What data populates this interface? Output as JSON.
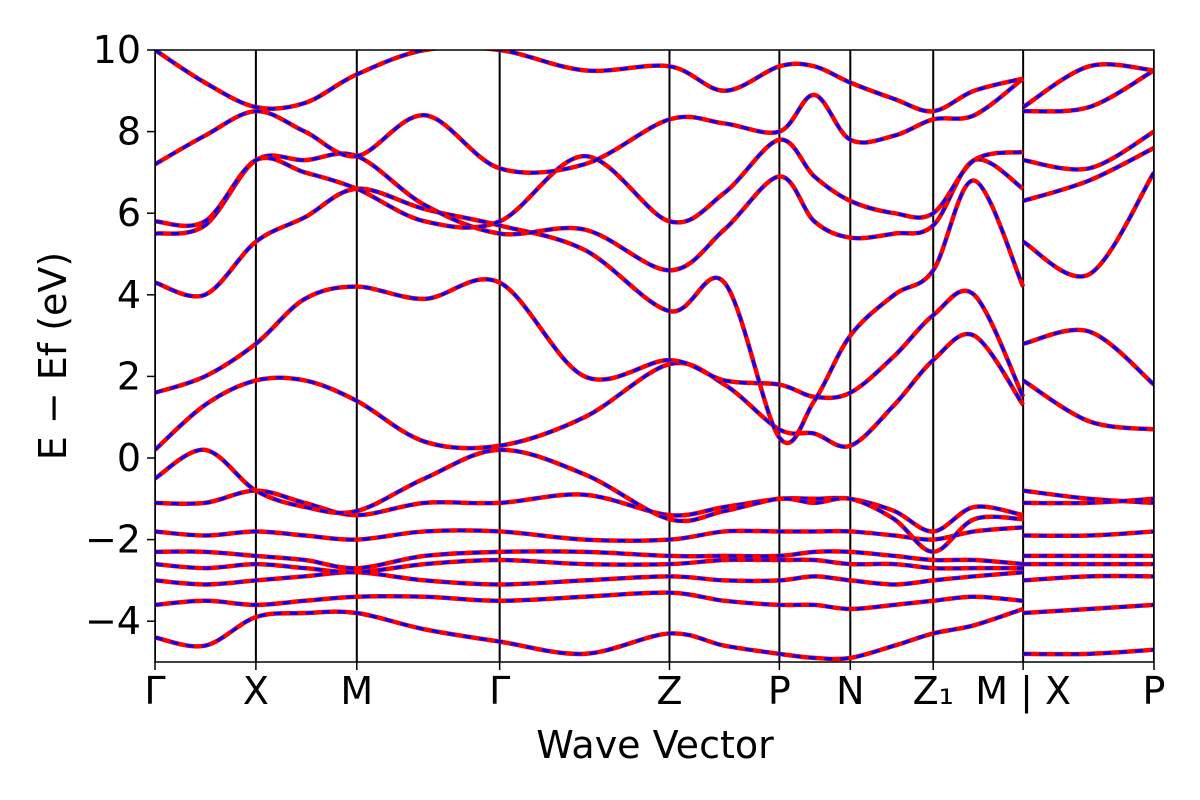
{
  "chart_data": {
    "type": "line",
    "xlabel": "Wave Vector",
    "ylabel": "E − Ef (eV)",
    "x": [
      0,
      0.05,
      0.101,
      0.15,
      0.202,
      0.27,
      0.345,
      0.43,
      0.515,
      0.57,
      0.625,
      0.66,
      0.696,
      0.74,
      0.779,
      0.82,
      0.869,
      0.869,
      0.869,
      0.935,
      1.0
    ],
    "xlim": [
      0,
      1.0
    ],
    "xticks": [
      {
        "value": 0,
        "label": "Γ"
      },
      {
        "value": 0.101,
        "label": "X"
      },
      {
        "value": 0.202,
        "label": "M"
      },
      {
        "value": 0.345,
        "label": "Γ"
      },
      {
        "value": 0.515,
        "label": "Z"
      },
      {
        "value": 0.625,
        "label": "P"
      },
      {
        "value": 0.696,
        "label": "N"
      },
      {
        "value": 0.779,
        "label": "Z₁"
      },
      {
        "value": 0.869,
        "label": "M | X"
      },
      {
        "value": 1.0,
        "label": "P"
      }
    ],
    "ylim": [
      -5,
      10
    ],
    "yticks": [
      {
        "value": -4,
        "label": "−4"
      },
      {
        "value": -2,
        "label": "−2"
      },
      0,
      2,
      4,
      6,
      8,
      10
    ],
    "vlines": true,
    "dash_color": "#0000ff",
    "series": [
      {
        "color": "#ff0000",
        "values": [
          -4.4,
          -4.6,
          -3.9,
          -3.8,
          -3.8,
          -4.2,
          -4.5,
          -4.8,
          -4.3,
          -4.6,
          -4.8,
          -4.9,
          -4.9,
          -4.6,
          -4.3,
          -4.1,
          -3.7,
          null,
          -4.8,
          -4.8,
          -4.7
        ]
      },
      {
        "color": "#ff0000",
        "values": [
          -3.6,
          -3.5,
          -3.6,
          -3.5,
          -3.4,
          -3.4,
          -3.5,
          -3.4,
          -3.3,
          -3.5,
          -3.6,
          -3.6,
          -3.7,
          -3.6,
          -3.5,
          -3.4,
          -3.5,
          null,
          -3.8,
          -3.7,
          -3.6
        ]
      },
      {
        "color": "#ff0000",
        "values": [
          -3.0,
          -3.1,
          -3.0,
          -2.9,
          -2.8,
          -3.0,
          -3.1,
          -3.0,
          -2.9,
          -3.0,
          -3.0,
          -2.9,
          -3.0,
          -3.1,
          -3.0,
          -2.9,
          -2.8,
          null,
          -3.0,
          -2.9,
          -2.9
        ]
      },
      {
        "color": "#ff0000",
        "values": [
          -2.6,
          -2.7,
          -2.6,
          -2.7,
          -2.8,
          -2.6,
          -2.5,
          -2.6,
          -2.6,
          -2.5,
          -2.5,
          -2.5,
          -2.6,
          -2.6,
          -2.7,
          -2.7,
          -2.7,
          null,
          -2.6,
          -2.6,
          -2.6
        ]
      },
      {
        "color": "#ff0000",
        "values": [
          -2.3,
          -2.3,
          -2.4,
          -2.5,
          -2.7,
          -2.4,
          -2.3,
          -2.3,
          -2.4,
          -2.4,
          -2.4,
          -2.3,
          -2.3,
          -2.4,
          -2.5,
          -2.5,
          -2.6,
          null,
          -2.4,
          -2.4,
          -2.4
        ]
      },
      {
        "color": "#ff0000",
        "values": [
          -1.8,
          -1.9,
          -1.8,
          -1.9,
          -2.0,
          -1.8,
          -1.8,
          -2.0,
          -2.0,
          -1.8,
          -1.8,
          -1.8,
          -1.8,
          -1.9,
          -2.0,
          -1.8,
          -1.7,
          null,
          -1.9,
          -1.9,
          -1.8
        ]
      },
      {
        "color": "#ff0000",
        "values": [
          -1.1,
          -1.1,
          -0.8,
          -1.1,
          -1.4,
          -1.1,
          -1.1,
          -0.9,
          -1.4,
          -1.2,
          -1.0,
          -1.0,
          -1.0,
          -1.3,
          -1.8,
          -1.2,
          -1.4,
          null,
          -0.8,
          -1.0,
          -1.1
        ]
      },
      {
        "color": "#ff0000",
        "values": [
          -0.5,
          0.2,
          -0.8,
          -1.2,
          -1.3,
          -0.5,
          0.2,
          -0.4,
          -1.5,
          -1.3,
          -1.0,
          -1.1,
          -1.0,
          -1.5,
          -2.3,
          -1.5,
          -1.5,
          null,
          -1.1,
          -1.1,
          -1.0
        ]
      },
      {
        "color": "#ff0000",
        "values": [
          0.2,
          1.3,
          1.9,
          1.9,
          1.4,
          0.4,
          0.3,
          1.0,
          2.3,
          1.8,
          0.7,
          0.6,
          0.3,
          1.3,
          2.4,
          3.0,
          1.3,
          null,
          1.9,
          0.9,
          0.7
        ]
      },
      {
        "color": "#ff0000",
        "values": [
          1.6,
          2.0,
          2.8,
          3.9,
          4.2,
          3.9,
          4.3,
          2.0,
          2.4,
          1.9,
          1.8,
          1.5,
          1.6,
          2.5,
          3.5,
          4.0,
          1.5,
          null,
          2.8,
          3.1,
          1.8
        ]
      },
      {
        "color": "#ff0000",
        "values": [
          4.3,
          4.0,
          5.3,
          5.9,
          6.6,
          6.1,
          5.7,
          5.1,
          3.6,
          4.3,
          0.5,
          1.4,
          3.0,
          4.0,
          4.6,
          6.8,
          4.2,
          null,
          5.3,
          4.5,
          7.0
        ]
      },
      {
        "color": "#ff0000",
        "values": [
          5.5,
          5.7,
          7.3,
          7.3,
          7.4,
          6.2,
          5.5,
          5.6,
          4.6,
          5.6,
          6.9,
          5.8,
          5.4,
          5.5,
          5.7,
          7.3,
          6.6,
          null,
          6.3,
          6.8,
          7.6
        ]
      },
      {
        "color": "#ff0000",
        "values": [
          5.8,
          5.8,
          7.3,
          7.0,
          6.6,
          5.8,
          5.8,
          7.4,
          5.8,
          6.5,
          7.8,
          6.9,
          6.3,
          6.0,
          6.0,
          7.3,
          7.5,
          null,
          7.3,
          7.1,
          8.0
        ]
      },
      {
        "color": "#ff0000",
        "values": [
          7.2,
          7.9,
          8.5,
          8.0,
          7.4,
          8.4,
          7.1,
          7.2,
          8.3,
          8.2,
          8.0,
          8.9,
          7.8,
          7.9,
          8.3,
          8.4,
          9.3,
          null,
          8.5,
          8.6,
          9.5
        ]
      },
      {
        "color": "#ff0000",
        "values": [
          10,
          9.2,
          8.6,
          8.7,
          9.4,
          10,
          10,
          9.5,
          9.6,
          9.0,
          9.6,
          9.6,
          9.2,
          8.8,
          8.5,
          9.0,
          9.3,
          null,
          8.6,
          9.6,
          9.5
        ]
      }
    ]
  }
}
